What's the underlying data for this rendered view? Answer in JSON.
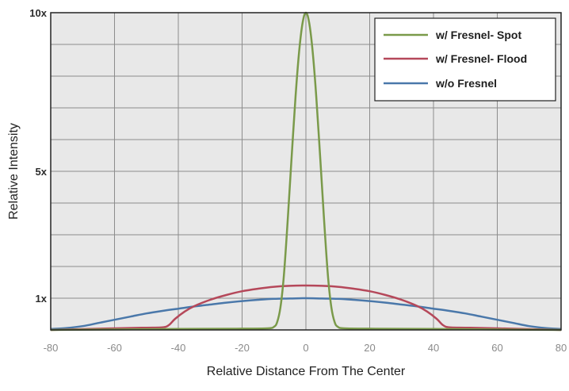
{
  "chart_data": {
    "type": "line",
    "title": "",
    "xlabel": "Relative Distance From The Center",
    "ylabel": "Relative Intensity",
    "xlim": [
      -80,
      80
    ],
    "ylim": [
      0,
      10
    ],
    "x_ticks": [
      -80,
      -60,
      -40,
      -20,
      0,
      20,
      40,
      60,
      80
    ],
    "x_tick_labels": [
      "-80",
      "-60",
      "-40",
      "-20",
      "0",
      "20",
      "40",
      "60",
      "80"
    ],
    "y_ticks": [
      1,
      5,
      10
    ],
    "y_tick_labels": [
      "1x",
      "5x",
      "10x"
    ],
    "y_minor_gridlines": [
      0,
      1,
      2,
      3,
      4,
      5,
      6,
      7,
      8,
      9,
      10
    ],
    "grid": true,
    "legend_position": "top-right",
    "background_color": "#e8e8e8",
    "grid_color": "#8c8c8c",
    "series": [
      {
        "name": "w/ Fresnel- Spot",
        "color": "#7a9a4a",
        "x": [
          -80,
          -40,
          -20,
          -12,
          -10,
          -9,
          -8,
          -7,
          -6,
          -5,
          -4,
          -3,
          -2,
          -1,
          0,
          1,
          2,
          3,
          4,
          5,
          6,
          7,
          8,
          9,
          10,
          12,
          20,
          40,
          80
        ],
        "y": [
          0,
          0.03,
          0.04,
          0.05,
          0.1,
          0.25,
          0.7,
          1.6,
          3.0,
          4.6,
          6.2,
          7.7,
          8.9,
          9.7,
          10.0,
          9.7,
          8.9,
          7.7,
          6.2,
          4.6,
          3.0,
          1.6,
          0.7,
          0.25,
          0.1,
          0.05,
          0.04,
          0.03,
          0
        ]
      },
      {
        "name": "w/ Fresnel- Flood",
        "color": "#b5485a",
        "x": [
          -80,
          -60,
          -50,
          -45,
          -43,
          -41,
          -38,
          -35,
          -30,
          -25,
          -20,
          -15,
          -10,
          -5,
          0,
          5,
          10,
          15,
          20,
          25,
          30,
          35,
          38,
          41,
          43,
          45,
          50,
          60,
          80
        ],
        "y": [
          0,
          0.05,
          0.07,
          0.08,
          0.15,
          0.35,
          0.58,
          0.75,
          0.95,
          1.1,
          1.22,
          1.3,
          1.36,
          1.39,
          1.4,
          1.39,
          1.36,
          1.3,
          1.22,
          1.1,
          0.95,
          0.75,
          0.58,
          0.35,
          0.15,
          0.08,
          0.07,
          0.05,
          0
        ]
      },
      {
        "name": "w/o Fresnel",
        "color": "#4a78aa",
        "x": [
          -80,
          -75,
          -70,
          -65,
          -60,
          -55,
          -50,
          -45,
          -40,
          -35,
          -30,
          -25,
          -20,
          -15,
          -10,
          -5,
          0,
          5,
          10,
          15,
          20,
          25,
          30,
          35,
          40,
          45,
          50,
          55,
          60,
          65,
          70,
          75,
          80
        ],
        "y": [
          0.03,
          0.06,
          0.12,
          0.22,
          0.32,
          0.42,
          0.52,
          0.6,
          0.67,
          0.74,
          0.8,
          0.86,
          0.91,
          0.95,
          0.98,
          0.99,
          1.0,
          0.99,
          0.98,
          0.95,
          0.91,
          0.86,
          0.8,
          0.74,
          0.67,
          0.6,
          0.52,
          0.42,
          0.32,
          0.22,
          0.12,
          0.06,
          0.03
        ]
      }
    ]
  }
}
